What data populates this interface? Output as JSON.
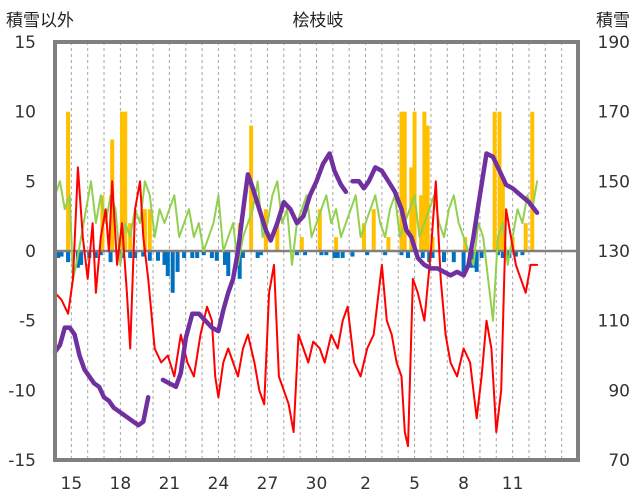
{
  "chart_data": {
    "type": "line",
    "title": "桧枝岐",
    "left_axis_label": "積雪以外",
    "right_axis_label": "積雪",
    "left_ylim": [
      -15,
      15
    ],
    "left_ticks": [
      15,
      10,
      5,
      0,
      -5,
      -10,
      -15
    ],
    "right_ylim": [
      70,
      190
    ],
    "right_ticks": [
      190,
      170,
      150,
      130,
      110,
      90,
      70
    ],
    "x_day_range": [
      0,
      32
    ],
    "x_ticks": [
      {
        "day": 1,
        "label": "15"
      },
      {
        "day": 4,
        "label": "18"
      },
      {
        "day": 7,
        "label": "21"
      },
      {
        "day": 10,
        "label": "24"
      },
      {
        "day": 13,
        "label": "27"
      },
      {
        "day": 16,
        "label": "30"
      },
      {
        "day": 19,
        "label": "2"
      },
      {
        "day": 22,
        "label": "5"
      },
      {
        "day": 25,
        "label": "8"
      },
      {
        "day": 28,
        "label": "11"
      }
    ],
    "grid": "vertical dashed, daily",
    "colors": {
      "frame": "#808080",
      "zero_line": "#808080",
      "snow_depth": "#7030a0",
      "temperature": "#ff0000",
      "green_series": "#92d050",
      "precipitation_bars": "#ffc000",
      "blue_bars": "#0070c0",
      "grid": "#a6a6a6"
    },
    "snow_depth": [
      {
        "points": [
          [
            0,
            101
          ],
          [
            0.3,
            103
          ],
          [
            0.6,
            108
          ],
          [
            0.9,
            108
          ],
          [
            1.2,
            106
          ],
          [
            1.5,
            100
          ],
          [
            1.8,
            96
          ],
          [
            2.1,
            94
          ],
          [
            2.4,
            92
          ],
          [
            2.7,
            91
          ],
          [
            3,
            88
          ],
          [
            3.3,
            87
          ],
          [
            3.6,
            85
          ],
          [
            3.9,
            84
          ],
          [
            4.2,
            83
          ],
          [
            4.5,
            82
          ],
          [
            4.8,
            81
          ],
          [
            5.1,
            80
          ],
          [
            5.4,
            81
          ],
          [
            5.7,
            88
          ]
        ]
      },
      {
        "points": [
          [
            6.6,
            93
          ],
          [
            7,
            92
          ],
          [
            7.4,
            91
          ],
          [
            7.7,
            95
          ],
          [
            8,
            105
          ],
          [
            8.4,
            112
          ],
          [
            8.8,
            112
          ],
          [
            9.2,
            110
          ],
          [
            9.6,
            108
          ],
          [
            10,
            107
          ],
          [
            10.3,
            113
          ],
          [
            10.6,
            118
          ],
          [
            10.9,
            122
          ],
          [
            11.2,
            130
          ],
          [
            11.6,
            145
          ],
          [
            11.8,
            152
          ],
          [
            12.1,
            148
          ],
          [
            12.5,
            142
          ],
          [
            12.9,
            136
          ],
          [
            13.2,
            133
          ],
          [
            13.6,
            138
          ],
          [
            14,
            144
          ],
          [
            14.4,
            142
          ],
          [
            14.8,
            138
          ],
          [
            15.2,
            140
          ],
          [
            15.6,
            146
          ],
          [
            16,
            150
          ],
          [
            16.4,
            155
          ],
          [
            16.8,
            158
          ],
          [
            17.1,
            153
          ],
          [
            17.5,
            149
          ],
          [
            17.8,
            147
          ]
        ]
      },
      {
        "points": [
          [
            18.2,
            150
          ],
          [
            18.6,
            150
          ],
          [
            18.9,
            148
          ],
          [
            19.2,
            150
          ],
          [
            19.6,
            154
          ],
          [
            20,
            153
          ],
          [
            20.4,
            150
          ],
          [
            20.8,
            147
          ],
          [
            21.2,
            142
          ],
          [
            21.5,
            136
          ],
          [
            21.8,
            134
          ],
          [
            22.2,
            128
          ],
          [
            22.6,
            126
          ],
          [
            23,
            125
          ],
          [
            23.4,
            125
          ],
          [
            23.8,
            124
          ],
          [
            24.2,
            123
          ],
          [
            24.6,
            124
          ],
          [
            25,
            123
          ],
          [
            25.3,
            126
          ],
          [
            25.6,
            134
          ],
          [
            26,
            146
          ],
          [
            26.4,
            158
          ],
          [
            26.8,
            157
          ],
          [
            27.2,
            153
          ],
          [
            27.6,
            149
          ],
          [
            28,
            148
          ],
          [
            28.5,
            146
          ],
          [
            29,
            144
          ],
          [
            29.5,
            141
          ]
        ]
      }
    ],
    "temperature": [
      [
        0,
        -3
      ],
      [
        0.4,
        -3.5
      ],
      [
        0.8,
        -4.5
      ],
      [
        1.1,
        -2
      ],
      [
        1.4,
        6
      ],
      [
        1.7,
        1
      ],
      [
        2,
        -2
      ],
      [
        2.3,
        2
      ],
      [
        2.5,
        -3
      ],
      [
        2.8,
        1
      ],
      [
        3.1,
        3
      ],
      [
        3.3,
        0
      ],
      [
        3.5,
        5
      ],
      [
        3.8,
        -1
      ],
      [
        4.1,
        2
      ],
      [
        4.4,
        -3
      ],
      [
        4.6,
        -7
      ],
      [
        4.9,
        3
      ],
      [
        5.2,
        5
      ],
      [
        5.4,
        1
      ],
      [
        5.7,
        -2
      ],
      [
        6.1,
        -7
      ],
      [
        6.5,
        -8
      ],
      [
        6.9,
        -7.5
      ],
      [
        7.3,
        -9
      ],
      [
        7.7,
        -6
      ],
      [
        8.1,
        -8
      ],
      [
        8.5,
        -9
      ],
      [
        8.9,
        -6
      ],
      [
        9.3,
        -4
      ],
      [
        9.6,
        -5
      ],
      [
        9.8,
        -9
      ],
      [
        10,
        -10.5
      ],
      [
        10.3,
        -8
      ],
      [
        10.6,
        -7
      ],
      [
        10.9,
        -8
      ],
      [
        11.2,
        -9
      ],
      [
        11.5,
        -7
      ],
      [
        11.8,
        -6
      ],
      [
        12.2,
        -8
      ],
      [
        12.5,
        -10
      ],
      [
        12.8,
        -11
      ],
      [
        13.1,
        -3
      ],
      [
        13.4,
        -1
      ],
      [
        13.7,
        -9
      ],
      [
        14,
        -10
      ],
      [
        14.3,
        -11
      ],
      [
        14.6,
        -13
      ],
      [
        14.9,
        -6
      ],
      [
        15.2,
        -7
      ],
      [
        15.5,
        -8
      ],
      [
        15.8,
        -6.5
      ],
      [
        16.2,
        -7
      ],
      [
        16.5,
        -8
      ],
      [
        16.9,
        -6
      ],
      [
        17.3,
        -7
      ],
      [
        17.6,
        -5
      ],
      [
        17.9,
        -4
      ],
      [
        18.3,
        -8
      ],
      [
        18.7,
        -9
      ],
      [
        19.1,
        -7
      ],
      [
        19.5,
        -6
      ],
      [
        19.8,
        -3
      ],
      [
        20,
        -1
      ],
      [
        20.3,
        -5
      ],
      [
        20.6,
        -6
      ],
      [
        20.9,
        -8
      ],
      [
        21.2,
        -9
      ],
      [
        21.4,
        -13
      ],
      [
        21.6,
        -14
      ],
      [
        21.9,
        -2
      ],
      [
        22.2,
        -3
      ],
      [
        22.6,
        -5
      ],
      [
        23,
        0
      ],
      [
        23.3,
        5
      ],
      [
        23.6,
        -2
      ],
      [
        23.9,
        -6
      ],
      [
        24.2,
        -8
      ],
      [
        24.6,
        -9
      ],
      [
        25,
        -7
      ],
      [
        25.4,
        -8
      ],
      [
        25.8,
        -12
      ],
      [
        26.1,
        -9
      ],
      [
        26.4,
        -5
      ],
      [
        26.7,
        -7
      ],
      [
        27,
        -13
      ],
      [
        27.3,
        -10
      ],
      [
        27.6,
        3
      ],
      [
        27.9,
        1
      ],
      [
        28.2,
        -1
      ],
      [
        28.5,
        -2
      ],
      [
        28.8,
        -3
      ],
      [
        29.1,
        -1
      ],
      [
        29.5,
        -1
      ]
    ],
    "green_series": [
      [
        0,
        4
      ],
      [
        0.3,
        5
      ],
      [
        0.6,
        3
      ],
      [
        0.9,
        4
      ],
      [
        1.1,
        -2
      ],
      [
        1.3,
        -1
      ],
      [
        1.6,
        1
      ],
      [
        1.9,
        3
      ],
      [
        2.2,
        5
      ],
      [
        2.5,
        2
      ],
      [
        2.8,
        4
      ],
      [
        3.1,
        2
      ],
      [
        3.4,
        4
      ],
      [
        3.7,
        3
      ],
      [
        4,
        -1
      ],
      [
        4.3,
        2
      ],
      [
        4.6,
        1
      ],
      [
        4.9,
        3
      ],
      [
        5.2,
        2
      ],
      [
        5.5,
        5
      ],
      [
        5.8,
        4
      ],
      [
        6.1,
        1
      ],
      [
        6.4,
        3
      ],
      [
        6.7,
        2
      ],
      [
        7,
        3
      ],
      [
        7.3,
        4
      ],
      [
        7.6,
        1
      ],
      [
        7.9,
        2
      ],
      [
        8.2,
        3
      ],
      [
        8.5,
        1
      ],
      [
        8.8,
        2
      ],
      [
        9.1,
        0
      ],
      [
        9.4,
        1
      ],
      [
        9.7,
        2
      ],
      [
        10,
        4
      ],
      [
        10.3,
        0
      ],
      [
        10.6,
        1
      ],
      [
        10.9,
        2
      ],
      [
        11.2,
        -1
      ],
      [
        11.5,
        1
      ],
      [
        11.8,
        2
      ],
      [
        12.1,
        3
      ],
      [
        12.4,
        5
      ],
      [
        12.7,
        1
      ],
      [
        13,
        2
      ],
      [
        13.3,
        4
      ],
      [
        13.6,
        5
      ],
      [
        13.9,
        2
      ],
      [
        14.2,
        3
      ],
      [
        14.5,
        -1
      ],
      [
        14.8,
        2
      ],
      [
        15.1,
        3
      ],
      [
        15.4,
        4
      ],
      [
        15.7,
        1
      ],
      [
        16,
        2
      ],
      [
        16.3,
        3
      ],
      [
        16.6,
        4
      ],
      [
        16.9,
        2
      ],
      [
        17.2,
        3
      ],
      [
        17.5,
        1
      ],
      [
        17.8,
        2
      ],
      [
        18.1,
        3
      ],
      [
        18.4,
        4
      ],
      [
        18.7,
        1
      ],
      [
        19,
        2
      ],
      [
        19.3,
        3
      ],
      [
        19.6,
        4
      ],
      [
        19.9,
        2
      ],
      [
        20.2,
        1
      ],
      [
        20.5,
        3
      ],
      [
        20.8,
        4
      ],
      [
        21.1,
        1
      ],
      [
        21.4,
        2
      ],
      [
        21.7,
        3
      ],
      [
        22,
        4
      ],
      [
        22.3,
        1
      ],
      [
        22.6,
        2
      ],
      [
        22.9,
        3
      ],
      [
        23.2,
        4
      ],
      [
        23.5,
        2
      ],
      [
        23.8,
        1
      ],
      [
        24.1,
        3
      ],
      [
        24.4,
        4
      ],
      [
        24.7,
        2
      ],
      [
        25,
        1
      ],
      [
        25.3,
        0
      ],
      [
        25.6,
        -1
      ],
      [
        25.9,
        2
      ],
      [
        26.2,
        1
      ],
      [
        26.5,
        -2
      ],
      [
        26.8,
        -5
      ],
      [
        27.1,
        1
      ],
      [
        27.4,
        2
      ],
      [
        27.7,
        -1
      ],
      [
        28,
        1
      ],
      [
        28.3,
        3
      ],
      [
        28.6,
        2
      ],
      [
        28.9,
        4
      ],
      [
        29.2,
        3
      ],
      [
        29.5,
        5
      ]
    ],
    "precipitation_bars": [
      [
        0.8,
        10
      ],
      [
        2.9,
        4
      ],
      [
        3.5,
        8
      ],
      [
        4.1,
        10
      ],
      [
        4.3,
        10
      ],
      [
        4.6,
        2
      ],
      [
        5.5,
        3
      ],
      [
        5.8,
        3
      ],
      [
        11.3,
        2
      ],
      [
        12,
        9
      ],
      [
        12.9,
        3
      ],
      [
        13.6,
        2
      ],
      [
        15.1,
        1
      ],
      [
        16.2,
        3
      ],
      [
        17.2,
        1
      ],
      [
        18.9,
        2
      ],
      [
        19.5,
        3
      ],
      [
        20.4,
        1
      ],
      [
        21.2,
        10
      ],
      [
        21.4,
        10
      ],
      [
        21.8,
        6
      ],
      [
        22,
        10
      ],
      [
        22.4,
        4
      ],
      [
        22.6,
        10
      ],
      [
        22.8,
        9
      ],
      [
        23.1,
        1
      ],
      [
        25.1,
        1
      ],
      [
        26.9,
        10
      ],
      [
        27.2,
        10
      ],
      [
        27.4,
        5
      ],
      [
        28,
        1
      ],
      [
        28.8,
        2
      ],
      [
        29.2,
        10
      ]
    ],
    "blue_bars": [
      [
        0.2,
        -0.5
      ],
      [
        0.4,
        -0.4
      ],
      [
        0.8,
        -0.8
      ],
      [
        1.4,
        -1.2
      ],
      [
        1.6,
        -1
      ],
      [
        2.1,
        -0.5
      ],
      [
        2.5,
        -0.5
      ],
      [
        2.8,
        -0.3
      ],
      [
        3.4,
        -0.8
      ],
      [
        4.1,
        -0.5
      ],
      [
        4.6,
        -0.5
      ],
      [
        4.9,
        -0.5
      ],
      [
        5.4,
        -0.4
      ],
      [
        5.8,
        -0.7
      ],
      [
        6.3,
        -0.7
      ],
      [
        6.7,
        -1
      ],
      [
        6.9,
        -1.8
      ],
      [
        7.2,
        -3
      ],
      [
        7.5,
        -1.5
      ],
      [
        7.9,
        -0.5
      ],
      [
        8.4,
        -0.5
      ],
      [
        8.7,
        -0.5
      ],
      [
        9.1,
        -0.3
      ],
      [
        9.6,
        -0.5
      ],
      [
        9.9,
        -0.7
      ],
      [
        10.4,
        -1
      ],
      [
        10.6,
        -1.8
      ],
      [
        11.3,
        -2
      ],
      [
        11.5,
        -0.5
      ],
      [
        12.4,
        -0.5
      ],
      [
        12.6,
        -0.3
      ],
      [
        14.8,
        -0.3
      ],
      [
        15.3,
        -0.3
      ],
      [
        16.3,
        -0.3
      ],
      [
        16.6,
        -0.3
      ],
      [
        17.1,
        -0.5
      ],
      [
        17.3,
        -0.5
      ],
      [
        17.6,
        -0.5
      ],
      [
        18.2,
        -0.4
      ],
      [
        19.1,
        -0.3
      ],
      [
        20.2,
        -0.3
      ],
      [
        21.2,
        -0.3
      ],
      [
        21.6,
        -0.5
      ],
      [
        22.5,
        -0.5
      ],
      [
        22.9,
        -0.8
      ],
      [
        23.1,
        -0.5
      ],
      [
        23.8,
        -0.8
      ],
      [
        24.4,
        -0.8
      ],
      [
        25,
        -1.5
      ],
      [
        25.4,
        -1.2
      ],
      [
        25.6,
        -1.2
      ],
      [
        25.8,
        -1.5
      ],
      [
        26.1,
        -0.5
      ],
      [
        27.1,
        -0.3
      ],
      [
        27.4,
        -0.5
      ],
      [
        27.8,
        -0.5
      ],
      [
        28.2,
        -0.4
      ],
      [
        28.6,
        -0.3
      ]
    ]
  }
}
